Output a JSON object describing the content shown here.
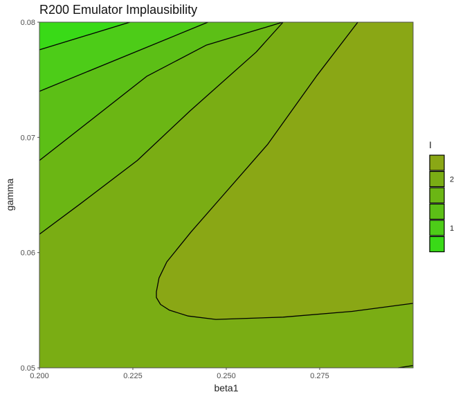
{
  "chart_data": {
    "type": "contour",
    "title": "R200 Emulator Implausibility",
    "xlabel": "beta1",
    "ylabel": "gamma",
    "xlim": [
      0.2,
      0.3
    ],
    "ylim": [
      0.05,
      0.08
    ],
    "x_ticks": [
      {
        "value": 0.2,
        "label": "0.200"
      },
      {
        "value": 0.225,
        "label": "0.225"
      },
      {
        "value": 0.25,
        "label": "0.250"
      },
      {
        "value": 0.275,
        "label": "0.275"
      }
    ],
    "y_ticks": [
      {
        "value": 0.05,
        "label": "0.05"
      },
      {
        "value": 0.06,
        "label": "0.06"
      },
      {
        "value": 0.07,
        "label": "0.07"
      },
      {
        "value": 0.08,
        "label": "0.08"
      }
    ],
    "legend": {
      "title": "I",
      "position": "right",
      "bins": [
        "#8aa715",
        "#7aad14",
        "#6bb614",
        "#5cbf16",
        "#4dcc18",
        "#39da17"
      ],
      "labels": [
        {
          "text": "2",
          "bin": 1
        },
        {
          "text": "1",
          "bin": 4
        }
      ]
    },
    "contour_lines": [
      {
        "name": "line-1",
        "points": [
          [
            0.2,
            0.0776
          ],
          [
            0.2242,
            0.08
          ]
        ]
      },
      {
        "name": "line-2",
        "points": [
          [
            0.2,
            0.074
          ],
          [
            0.2451,
            0.08
          ]
        ]
      },
      {
        "name": "line-3",
        "points": [
          [
            0.2,
            0.068
          ],
          [
            0.2134,
            0.0714
          ],
          [
            0.2287,
            0.0753
          ],
          [
            0.2446,
            0.078
          ],
          [
            0.2651,
            0.08
          ]
        ]
      },
      {
        "name": "line-4",
        "points": [
          [
            0.2,
            0.0616
          ],
          [
            0.2108,
            0.0642
          ],
          [
            0.2262,
            0.068
          ],
          [
            0.2403,
            0.0723
          ],
          [
            0.258,
            0.0774
          ],
          [
            0.2652,
            0.08
          ]
        ]
      },
      {
        "name": "line-5",
        "points": [
          [
            0.2852,
            0.08
          ],
          [
            0.2741,
            0.0753
          ],
          [
            0.2611,
            0.0694
          ],
          [
            0.2484,
            0.0647
          ],
          [
            0.2406,
            0.0618
          ],
          [
            0.2341,
            0.0592
          ],
          [
            0.232,
            0.0578
          ],
          [
            0.2313,
            0.0566
          ],
          [
            0.2313,
            0.0561
          ],
          [
            0.2324,
            0.0555
          ],
          [
            0.2348,
            0.055
          ],
          [
            0.2398,
            0.0545
          ],
          [
            0.2472,
            0.0542
          ],
          [
            0.2652,
            0.0544
          ],
          [
            0.2837,
            0.0549
          ],
          [
            0.3,
            0.0556
          ]
        ]
      },
      {
        "name": "line-6",
        "points": [
          [
            0.296,
            0.05
          ],
          [
            0.3,
            0.0502
          ]
        ]
      }
    ],
    "regions": [
      {
        "name": "band-top-left",
        "fill_bin": 5,
        "points": [
          [
            0.2,
            0.08
          ],
          [
            0.2242,
            0.08
          ],
          [
            0.2,
            0.0776
          ]
        ]
      },
      {
        "name": "band-2",
        "fill_bin": 4,
        "points": [
          [
            0.2,
            0.0776
          ],
          [
            0.2242,
            0.08
          ],
          [
            0.2451,
            0.08
          ],
          [
            0.2,
            0.074
          ]
        ]
      },
      {
        "name": "band-3",
        "fill_bin": 3,
        "points": [
          [
            0.2,
            0.074
          ],
          [
            0.2451,
            0.08
          ],
          [
            0.2651,
            0.08
          ],
          [
            0.2446,
            0.078
          ],
          [
            0.2287,
            0.0753
          ],
          [
            0.2134,
            0.0714
          ],
          [
            0.2,
            0.068
          ]
        ]
      },
      {
        "name": "band-4",
        "fill_bin": 2,
        "points": [
          [
            0.2,
            0.068
          ],
          [
            0.2134,
            0.0714
          ],
          [
            0.2287,
            0.0753
          ],
          [
            0.2446,
            0.078
          ],
          [
            0.2651,
            0.08
          ],
          [
            0.2652,
            0.08
          ],
          [
            0.258,
            0.0774
          ],
          [
            0.2403,
            0.0723
          ],
          [
            0.2262,
            0.068
          ],
          [
            0.2108,
            0.0642
          ],
          [
            0.2,
            0.0616
          ]
        ]
      },
      {
        "name": "band-5",
        "fill_bin": 0,
        "points": [
          [
            0.2852,
            0.08
          ],
          [
            0.2741,
            0.0753
          ],
          [
            0.2611,
            0.0694
          ],
          [
            0.2484,
            0.0647
          ],
          [
            0.2406,
            0.0618
          ],
          [
            0.2341,
            0.0592
          ],
          [
            0.232,
            0.0578
          ],
          [
            0.2313,
            0.0566
          ],
          [
            0.2313,
            0.0561
          ],
          [
            0.2324,
            0.0555
          ],
          [
            0.2348,
            0.055
          ],
          [
            0.2398,
            0.0545
          ],
          [
            0.2472,
            0.0542
          ],
          [
            0.2652,
            0.0544
          ],
          [
            0.2837,
            0.0549
          ],
          [
            0.3,
            0.0556
          ],
          [
            0.3,
            0.08
          ]
        ]
      },
      {
        "name": "band-bottom-right",
        "fill_bin": 2,
        "points": [
          [
            0.296,
            0.05
          ],
          [
            0.3,
            0.0502
          ],
          [
            0.3,
            0.05
          ]
        ]
      }
    ],
    "background_bin": 1
  }
}
